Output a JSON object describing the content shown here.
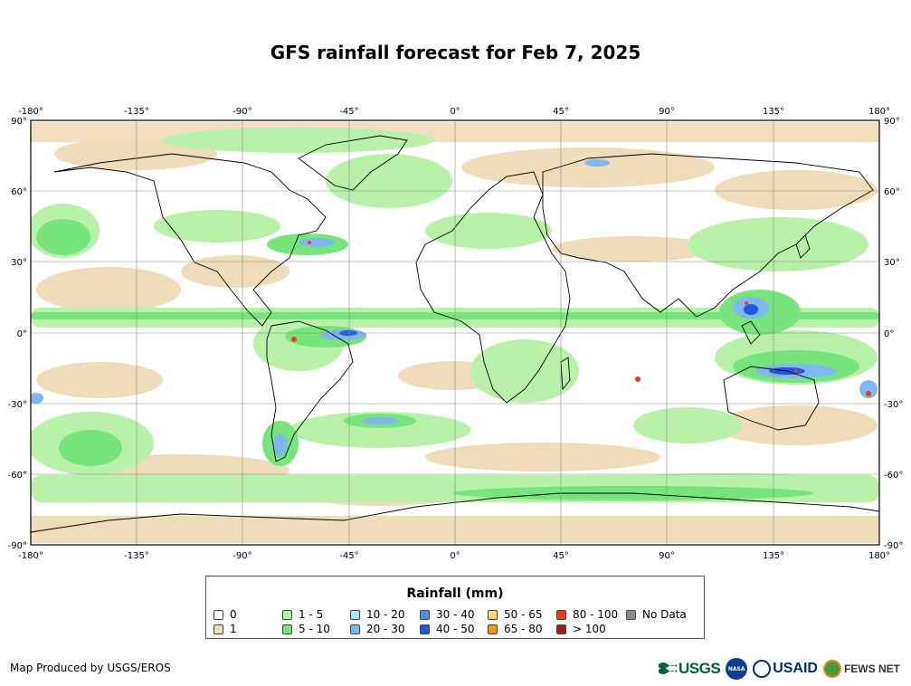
{
  "title": "GFS rainfall forecast for Feb 7, 2025",
  "map": {
    "lon_ticks": [
      "-180°",
      "-135°",
      "-90°",
      "-45°",
      "0°",
      "45°",
      "90°",
      "135°",
      "180°"
    ],
    "lat_ticks": [
      "90°",
      "60°",
      "30°",
      "0°",
      "-30°",
      "-60°",
      "-90°"
    ],
    "lon_range": [
      -180,
      180
    ],
    "lat_range": [
      -90,
      90
    ],
    "grid": true
  },
  "legend": {
    "title": "Rainfall (mm)",
    "items": [
      {
        "label": "0",
        "color": "#ffffff"
      },
      {
        "label": "1",
        "color": "#efdcb8"
      },
      {
        "label": "1 - 5",
        "color": "#b8f2a8"
      },
      {
        "label": "5 - 10",
        "color": "#78e57c"
      },
      {
        "label": "10 - 20",
        "color": "#a8ecf0"
      },
      {
        "label": "20 - 30",
        "color": "#7fb8f0"
      },
      {
        "label": "30 - 40",
        "color": "#4a90e8"
      },
      {
        "label": "40 - 50",
        "color": "#1c58e0"
      },
      {
        "label": "50 - 65",
        "color": "#f5de6a"
      },
      {
        "label": "65 - 80",
        "color": "#f09a1c"
      },
      {
        "label": "80 - 100",
        "color": "#f03c14"
      },
      {
        "label": "> 100",
        "color": "#a0201c"
      },
      {
        "label": "No Data",
        "color": "#8c8c8c"
      }
    ]
  },
  "credit": "Map Produced by USGS/EROS",
  "logos": {
    "usgs": "USGS",
    "nasa": "NASA",
    "usaid": "USAID",
    "fews": "FEWS NET"
  }
}
